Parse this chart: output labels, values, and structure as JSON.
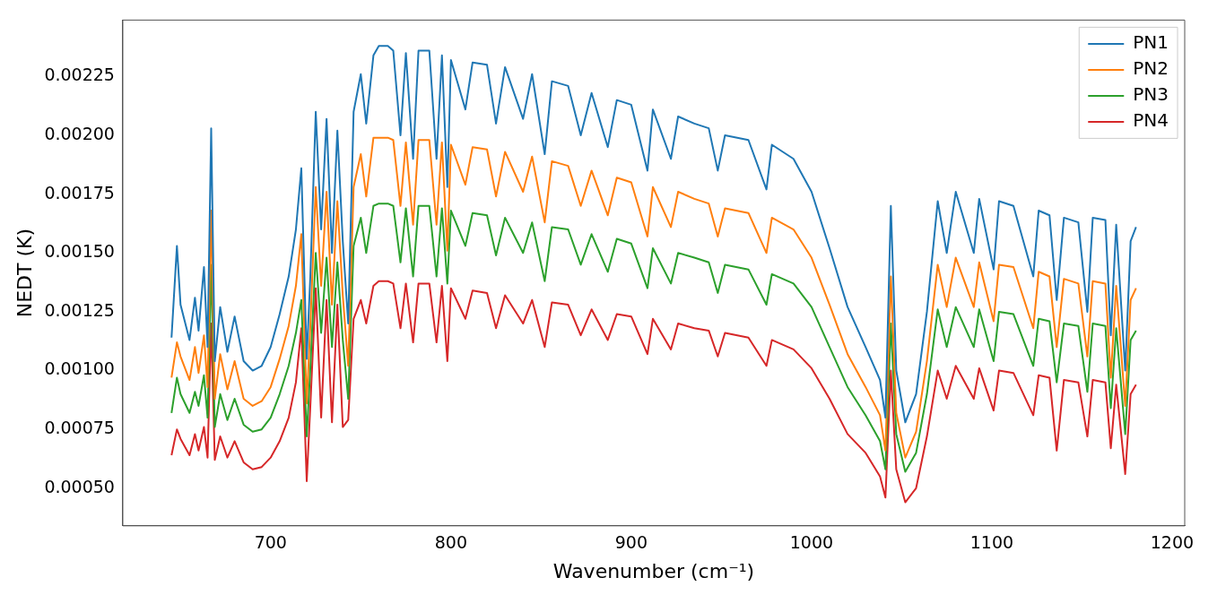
{
  "chart_data": {
    "type": "line",
    "xlabel": "Wavenumber (cm⁻¹)",
    "ylabel": "NEDT (K)",
    "legend": "top right",
    "grid": false,
    "marker": "none",
    "line_style": "solid",
    "xlim": [
      618,
      1207
    ],
    "xticks": [
      700,
      800,
      900,
      1000,
      1100,
      1200
    ],
    "ylim": [
      0.00034,
      0.00249
    ],
    "yticks": [
      {
        "value": 0.0005,
        "label": "0.00050"
      },
      {
        "value": 0.00075,
        "label": "0.00075"
      },
      {
        "value": 0.001,
        "label": "0.00100"
      },
      {
        "value": 0.00125,
        "label": "0.00125"
      },
      {
        "value": 0.0015,
        "label": "0.00150"
      },
      {
        "value": 0.00175,
        "label": "0.00175"
      },
      {
        "value": 0.002,
        "label": "0.00200"
      },
      {
        "value": 0.00225,
        "label": "0.00225"
      }
    ],
    "x": [
      645,
      648,
      650,
      655,
      658,
      660,
      663,
      665,
      667,
      669,
      672,
      676,
      680,
      685,
      690,
      695,
      700,
      705,
      710,
      714,
      717,
      720,
      722,
      725,
      728,
      731,
      734,
      737,
      740,
      743,
      746,
      750,
      753,
      757,
      760,
      765,
      768,
      772,
      775,
      779,
      782,
      788,
      792,
      795,
      798,
      800,
      808,
      812,
      820,
      825,
      830,
      840,
      845,
      852,
      856,
      865,
      872,
      878,
      887,
      892,
      900,
      909,
      912,
      922,
      926,
      935,
      943,
      948,
      952,
      965,
      975,
      978,
      990,
      1000,
      1010,
      1020,
      1030,
      1038,
      1041,
      1044,
      1047,
      1052,
      1058,
      1064,
      1070,
      1075,
      1080,
      1090,
      1093,
      1101,
      1104,
      1112,
      1123,
      1126,
      1132,
      1136,
      1140,
      1148,
      1153,
      1156,
      1163,
      1166,
      1169,
      1174,
      1177,
      1180
    ],
    "series": [
      {
        "name": "PN1",
        "color": "#1f77b4",
        "values": [
          0.00114,
          0.00153,
          0.00128,
          0.00113,
          0.00131,
          0.00117,
          0.00144,
          0.0011,
          0.00203,
          0.00104,
          0.00127,
          0.00108,
          0.00123,
          0.00104,
          0.001,
          0.00102,
          0.0011,
          0.00124,
          0.0014,
          0.0016,
          0.00186,
          0.00105,
          0.0014,
          0.0021,
          0.0016,
          0.00207,
          0.0015,
          0.00202,
          0.00155,
          0.0012,
          0.0021,
          0.00226,
          0.00205,
          0.00234,
          0.00238,
          0.00238,
          0.00236,
          0.002,
          0.00235,
          0.0019,
          0.00236,
          0.00236,
          0.0019,
          0.00234,
          0.00178,
          0.00232,
          0.00211,
          0.00231,
          0.0023,
          0.00205,
          0.00229,
          0.00207,
          0.00226,
          0.00192,
          0.00223,
          0.00221,
          0.002,
          0.00218,
          0.00195,
          0.00215,
          0.00213,
          0.00185,
          0.00211,
          0.0019,
          0.00208,
          0.00205,
          0.00203,
          0.00185,
          0.002,
          0.00198,
          0.00177,
          0.00196,
          0.0019,
          0.00176,
          0.00152,
          0.00127,
          0.0011,
          0.00096,
          0.0008,
          0.0017,
          0.001,
          0.00078,
          0.0009,
          0.00125,
          0.00172,
          0.0015,
          0.00176,
          0.0015,
          0.00173,
          0.00143,
          0.00172,
          0.0017,
          0.0014,
          0.00168,
          0.00166,
          0.0013,
          0.00165,
          0.00163,
          0.00125,
          0.00165,
          0.00164,
          0.00115,
          0.00162,
          0.001,
          0.00155,
          0.00161
        ]
      },
      {
        "name": "PN2",
        "color": "#ff7f0e",
        "values": [
          0.00097,
          0.00112,
          0.00106,
          0.00096,
          0.0011,
          0.00099,
          0.00115,
          0.00093,
          0.00168,
          0.00088,
          0.00107,
          0.00092,
          0.00104,
          0.00088,
          0.00085,
          0.00087,
          0.00093,
          0.00105,
          0.00119,
          0.00136,
          0.00158,
          0.00086,
          0.00119,
          0.00178,
          0.00136,
          0.00176,
          0.00128,
          0.00172,
          0.00132,
          0.00102,
          0.00178,
          0.00192,
          0.00174,
          0.00199,
          0.00199,
          0.00199,
          0.00198,
          0.0017,
          0.00197,
          0.00162,
          0.00198,
          0.00198,
          0.00162,
          0.00197,
          0.00151,
          0.00196,
          0.00179,
          0.00195,
          0.00194,
          0.00174,
          0.00193,
          0.00176,
          0.00191,
          0.00163,
          0.00189,
          0.00187,
          0.0017,
          0.00185,
          0.00166,
          0.00182,
          0.0018,
          0.00157,
          0.00178,
          0.00161,
          0.00176,
          0.00173,
          0.00171,
          0.00157,
          0.00169,
          0.00167,
          0.0015,
          0.00165,
          0.0016,
          0.00148,
          0.00128,
          0.00107,
          0.00093,
          0.00081,
          0.00066,
          0.0014,
          0.00082,
          0.00063,
          0.00074,
          0.00104,
          0.00145,
          0.00127,
          0.00148,
          0.00127,
          0.00146,
          0.00121,
          0.00145,
          0.00144,
          0.00118,
          0.00142,
          0.0014,
          0.0011,
          0.00139,
          0.00137,
          0.00106,
          0.00138,
          0.00137,
          0.00097,
          0.00136,
          0.00085,
          0.0013,
          0.00135
        ]
      },
      {
        "name": "PN3",
        "color": "#2ca02c",
        "values": [
          0.00082,
          0.00097,
          0.0009,
          0.00082,
          0.00091,
          0.00085,
          0.00098,
          0.0008,
          0.00145,
          0.00076,
          0.0009,
          0.00079,
          0.00088,
          0.00077,
          0.00074,
          0.00075,
          0.0008,
          0.0009,
          0.00102,
          0.00116,
          0.0013,
          0.00072,
          0.00101,
          0.0015,
          0.00116,
          0.00148,
          0.0011,
          0.00146,
          0.00113,
          0.00088,
          0.00153,
          0.00165,
          0.0015,
          0.0017,
          0.00171,
          0.00171,
          0.0017,
          0.00146,
          0.00169,
          0.0014,
          0.0017,
          0.0017,
          0.0014,
          0.00169,
          0.00137,
          0.00168,
          0.00153,
          0.00167,
          0.00166,
          0.00149,
          0.00165,
          0.0015,
          0.00163,
          0.00138,
          0.00161,
          0.0016,
          0.00145,
          0.00158,
          0.00142,
          0.00156,
          0.00154,
          0.00135,
          0.00152,
          0.00137,
          0.0015,
          0.00148,
          0.00146,
          0.00133,
          0.00145,
          0.00143,
          0.00128,
          0.00141,
          0.00137,
          0.00127,
          0.0011,
          0.00093,
          0.00081,
          0.0007,
          0.00058,
          0.0012,
          0.00073,
          0.00057,
          0.00065,
          0.0009,
          0.00126,
          0.0011,
          0.00127,
          0.0011,
          0.00126,
          0.00104,
          0.00125,
          0.00124,
          0.00102,
          0.00122,
          0.00121,
          0.00095,
          0.0012,
          0.00119,
          0.00091,
          0.0012,
          0.00119,
          0.00084,
          0.00118,
          0.00073,
          0.00113,
          0.00117
        ]
      },
      {
        "name": "PN4",
        "color": "#d62728",
        "values": [
          0.00064,
          0.00075,
          0.00071,
          0.00064,
          0.00073,
          0.00066,
          0.00076,
          0.00063,
          0.0012,
          0.00062,
          0.00072,
          0.00063,
          0.0007,
          0.00061,
          0.00058,
          0.00059,
          0.00063,
          0.0007,
          0.0008,
          0.00095,
          0.00118,
          0.00053,
          0.00085,
          0.00135,
          0.0008,
          0.0013,
          0.00078,
          0.00128,
          0.00076,
          0.00079,
          0.00122,
          0.0013,
          0.0012,
          0.00136,
          0.00138,
          0.00138,
          0.00137,
          0.00118,
          0.00137,
          0.00112,
          0.00137,
          0.00137,
          0.00112,
          0.00136,
          0.00104,
          0.00135,
          0.00122,
          0.00134,
          0.00133,
          0.00118,
          0.00132,
          0.0012,
          0.0013,
          0.0011,
          0.00129,
          0.00128,
          0.00115,
          0.00126,
          0.00113,
          0.00124,
          0.00123,
          0.00107,
          0.00122,
          0.00109,
          0.0012,
          0.00118,
          0.00117,
          0.00106,
          0.00116,
          0.00114,
          0.00102,
          0.00113,
          0.00109,
          0.00101,
          0.00088,
          0.00073,
          0.00065,
          0.00055,
          0.00046,
          0.001,
          0.00058,
          0.00044,
          0.0005,
          0.00072,
          0.001,
          0.00088,
          0.00102,
          0.00088,
          0.00101,
          0.00083,
          0.001,
          0.00099,
          0.00081,
          0.00098,
          0.00097,
          0.00066,
          0.00096,
          0.00095,
          0.00072,
          0.00096,
          0.00095,
          0.00067,
          0.00094,
          0.00056,
          0.0009,
          0.00094
        ]
      }
    ]
  }
}
